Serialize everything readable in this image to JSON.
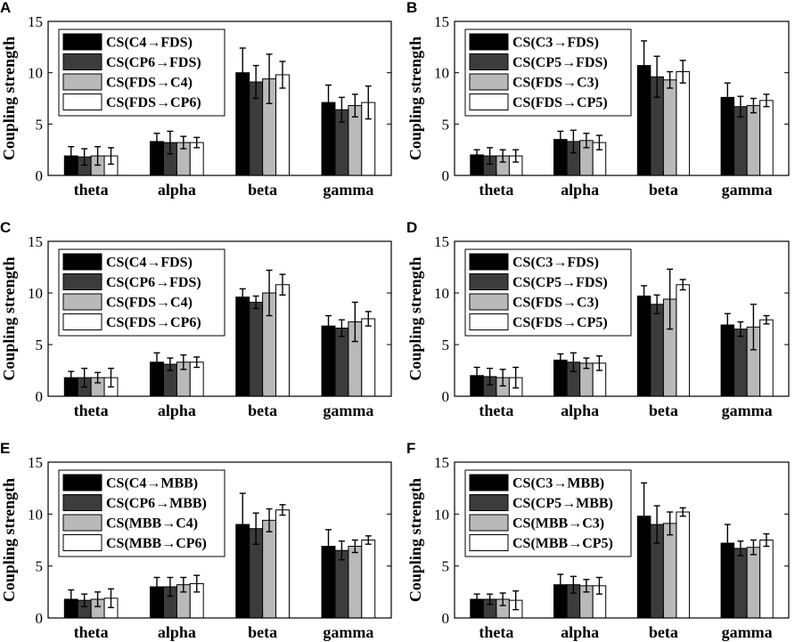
{
  "colors": {
    "series": [
      "#000000",
      "#3c3c3c",
      "#b9b9b9",
      "#ffffff"
    ],
    "axis": "#000000"
  },
  "chart_data": [
    {
      "type": "bar",
      "panel": "A",
      "ylabel": "Coupling strength",
      "ylim": [
        0,
        15
      ],
      "yticks": [
        "0",
        "5",
        "10",
        "15"
      ],
      "categories": [
        "theta",
        "alpha",
        "beta",
        "gamma"
      ],
      "series": [
        {
          "name": "CS(C4→FDS)",
          "values": [
            1.9,
            3.3,
            10.0,
            7.1
          ],
          "errors": [
            0.9,
            0.8,
            2.4,
            1.7
          ]
        },
        {
          "name": "CS(CP6→FDS)",
          "values": [
            1.8,
            3.2,
            9.1,
            6.4
          ],
          "errors": [
            0.8,
            1.1,
            1.6,
            1.2
          ]
        },
        {
          "name": "CS(FDS→C4)",
          "values": [
            1.9,
            3.2,
            9.4,
            6.8
          ],
          "errors": [
            0.9,
            0.6,
            2.4,
            1.1
          ]
        },
        {
          "name": "CS(FDS→CP6)",
          "values": [
            1.9,
            3.2,
            9.8,
            7.1
          ],
          "errors": [
            0.8,
            0.5,
            1.3,
            1.6
          ]
        }
      ]
    },
    {
      "type": "bar",
      "panel": "B",
      "ylabel": "Coupling strength",
      "ylim": [
        0,
        15
      ],
      "yticks": [
        "0",
        "5",
        "10",
        "15"
      ],
      "categories": [
        "theta",
        "alpha",
        "beta",
        "gamma"
      ],
      "series": [
        {
          "name": "CS(C3→FDS)",
          "values": [
            2.0,
            3.5,
            10.7,
            7.6
          ],
          "errors": [
            0.5,
            0.8,
            2.4,
            1.4
          ]
        },
        {
          "name": "CS(CP5→FDS)",
          "values": [
            1.9,
            3.3,
            9.6,
            6.7
          ],
          "errors": [
            0.8,
            1.1,
            2.0,
            1.0
          ]
        },
        {
          "name": "CS(FDS→C3)",
          "values": [
            1.9,
            3.4,
            9.3,
            6.8
          ],
          "errors": [
            0.6,
            0.7,
            0.8,
            0.7
          ]
        },
        {
          "name": "CS(FDS→CP5)",
          "values": [
            1.9,
            3.2,
            10.1,
            7.3
          ],
          "errors": [
            0.6,
            0.7,
            1.1,
            0.6
          ]
        }
      ]
    },
    {
      "type": "bar",
      "panel": "C",
      "ylabel": "Coupling strength",
      "ylim": [
        0,
        15
      ],
      "yticks": [
        "0",
        "5",
        "10",
        "15"
      ],
      "categories": [
        "theta",
        "alpha",
        "beta",
        "gamma"
      ],
      "series": [
        {
          "name": "CS(C4→FDS)",
          "values": [
            1.8,
            3.3,
            9.6,
            6.8
          ],
          "errors": [
            0.6,
            0.9,
            0.8,
            1.0
          ]
        },
        {
          "name": "CS(CP6→FDS)",
          "values": [
            1.8,
            3.1,
            9.1,
            6.6
          ],
          "errors": [
            0.9,
            0.6,
            0.6,
            0.8
          ]
        },
        {
          "name": "CS(FDS→C4)",
          "values": [
            1.8,
            3.3,
            10.0,
            7.2
          ],
          "errors": [
            0.5,
            0.7,
            2.2,
            1.9
          ]
        },
        {
          "name": "CS(FDS→CP6)",
          "values": [
            1.8,
            3.3,
            10.8,
            7.5
          ],
          "errors": [
            0.9,
            0.5,
            1.0,
            0.7
          ]
        }
      ]
    },
    {
      "type": "bar",
      "panel": "D",
      "ylabel": "Coupling strength",
      "ylim": [
        0,
        15
      ],
      "yticks": [
        "0",
        "5",
        "10",
        "15"
      ],
      "categories": [
        "theta",
        "alpha",
        "beta",
        "gamma"
      ],
      "series": [
        {
          "name": "CS(C3→FDS)",
          "values": [
            2.0,
            3.5,
            9.7,
            6.9
          ],
          "errors": [
            0.8,
            0.6,
            1.0,
            1.1
          ]
        },
        {
          "name": "CS(CP5→FDS)",
          "values": [
            1.9,
            3.3,
            8.9,
            6.5
          ],
          "errors": [
            0.8,
            0.9,
            0.9,
            0.7
          ]
        },
        {
          "name": "CS(FDS→C3)",
          "values": [
            1.8,
            3.2,
            9.4,
            6.7
          ],
          "errors": [
            0.8,
            0.5,
            2.9,
            2.2
          ]
        },
        {
          "name": "CS(FDS→CP5)",
          "values": [
            1.8,
            3.2,
            10.8,
            7.4
          ],
          "errors": [
            1.0,
            0.7,
            0.5,
            0.4
          ]
        }
      ]
    },
    {
      "type": "bar",
      "panel": "E",
      "ylabel": "Coupling strength",
      "ylim": [
        0,
        15
      ],
      "yticks": [
        "0",
        "5",
        "10",
        "15"
      ],
      "categories": [
        "theta",
        "alpha",
        "beta",
        "gamma"
      ],
      "series": [
        {
          "name": "CS(C4→MBB)",
          "values": [
            1.8,
            3.0,
            9.0,
            6.9
          ],
          "errors": [
            0.9,
            0.9,
            3.0,
            1.6
          ]
        },
        {
          "name": "CS(CP6→MBB)",
          "values": [
            1.7,
            3.0,
            8.6,
            6.5
          ],
          "errors": [
            0.6,
            0.9,
            1.5,
            0.9
          ]
        },
        {
          "name": "CS(MBB→C4)",
          "values": [
            1.8,
            3.2,
            9.4,
            6.9
          ],
          "errors": [
            0.7,
            0.7,
            1.1,
            0.6
          ]
        },
        {
          "name": "CS(MBB→CP6)",
          "values": [
            1.9,
            3.3,
            10.4,
            7.5
          ],
          "errors": [
            0.9,
            0.8,
            0.5,
            0.4
          ]
        }
      ]
    },
    {
      "type": "bar",
      "panel": "F",
      "ylabel": "Coupling strength",
      "ylim": [
        0,
        15
      ],
      "yticks": [
        "0",
        "5",
        "10",
        "15"
      ],
      "categories": [
        "theta",
        "alpha",
        "beta",
        "gamma"
      ],
      "series": [
        {
          "name": "CS(C3→MBB)",
          "values": [
            1.8,
            3.2,
            9.8,
            7.2
          ],
          "errors": [
            0.5,
            1.0,
            3.2,
            1.8
          ]
        },
        {
          "name": "CS(CP5→MBB)",
          "values": [
            1.8,
            3.2,
            9.0,
            6.7
          ],
          "errors": [
            0.5,
            0.8,
            1.8,
            0.7
          ]
        },
        {
          "name": "CS(MBB→C3)",
          "values": [
            1.8,
            3.1,
            9.1,
            6.8
          ],
          "errors": [
            0.6,
            0.6,
            1.1,
            0.7
          ]
        },
        {
          "name": "CS(MBB→CP5)",
          "values": [
            1.7,
            3.1,
            10.2,
            7.5
          ],
          "errors": [
            0.9,
            0.8,
            0.4,
            0.6
          ]
        }
      ]
    }
  ]
}
